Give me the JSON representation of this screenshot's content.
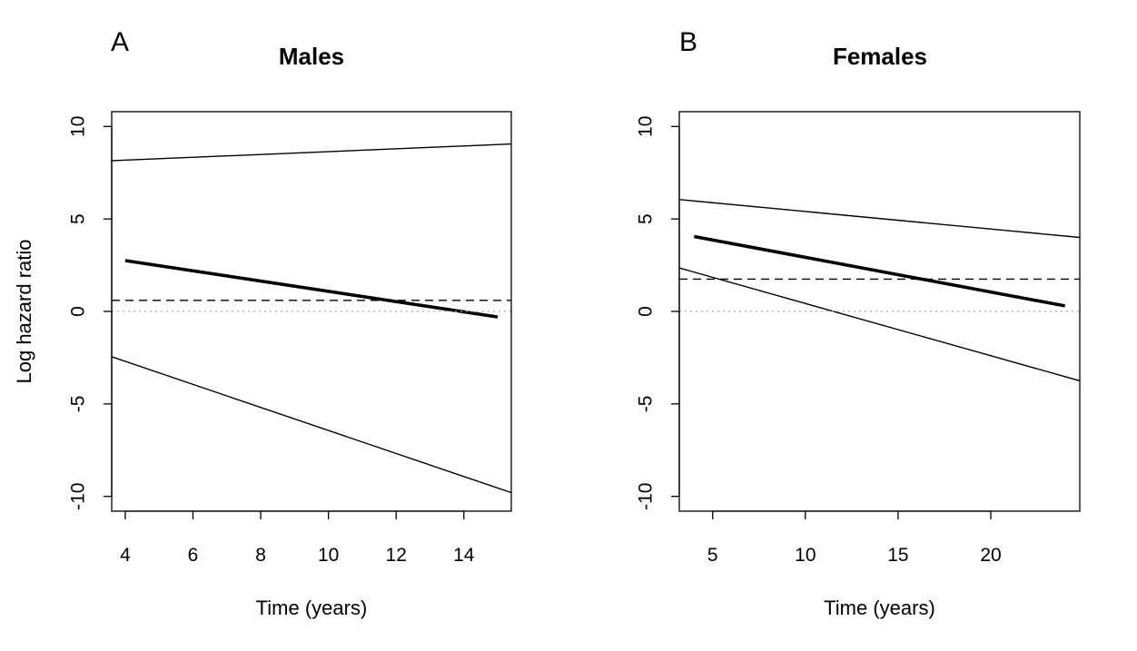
{
  "chart_data": [
    {
      "type": "line",
      "panel_label": "A",
      "title": "Males",
      "xlabel": "Time (years)",
      "ylabel": "Log hazard ratio",
      "xlim": [
        3.6,
        15.4
      ],
      "ylim": [
        -10.8,
        10.8
      ],
      "xticks": [
        4,
        6,
        8,
        10,
        12,
        14
      ],
      "yticks": [
        -10,
        -5,
        0,
        5,
        10
      ],
      "grid": false,
      "series": [
        {
          "role": "estimate",
          "style": "thick-solid",
          "x": [
            4,
            15
          ],
          "y": [
            2.75,
            -0.3
          ]
        },
        {
          "role": "upper-bound",
          "style": "thin-solid",
          "x": [
            3.6,
            15.4
          ],
          "y": [
            8.15,
            9.05
          ]
        },
        {
          "role": "lower-bound",
          "style": "thin-solid",
          "x": [
            3.6,
            15.4
          ],
          "y": [
            -2.45,
            -9.8
          ]
        },
        {
          "role": "reference-dashed",
          "style": "dashed",
          "x": [
            3.6,
            15.4
          ],
          "y": [
            0.6,
            0.6
          ]
        },
        {
          "role": "zero-line",
          "style": "dotted-gray",
          "x": [
            3.6,
            15.4
          ],
          "y": [
            0,
            0
          ]
        }
      ]
    },
    {
      "type": "line",
      "panel_label": "B",
      "title": "Females",
      "xlabel": "Time (years)",
      "ylabel": "",
      "xlim": [
        3.2,
        24.8
      ],
      "ylim": [
        -10.8,
        10.8
      ],
      "xticks": [
        5,
        10,
        15,
        20
      ],
      "yticks": [
        -10,
        -5,
        0,
        5,
        10
      ],
      "grid": false,
      "series": [
        {
          "role": "estimate",
          "style": "thick-solid",
          "x": [
            4,
            24
          ],
          "y": [
            4.05,
            0.3
          ]
        },
        {
          "role": "upper-bound",
          "style": "thin-solid",
          "x": [
            3.2,
            24.8
          ],
          "y": [
            6.05,
            4.0
          ]
        },
        {
          "role": "lower-bound",
          "style": "thin-solid",
          "x": [
            3.2,
            24.8
          ],
          "y": [
            2.35,
            -3.75
          ]
        },
        {
          "role": "reference-dashed",
          "style": "dashed",
          "x": [
            3.2,
            24.8
          ],
          "y": [
            1.75,
            1.75
          ]
        },
        {
          "role": "zero-line",
          "style": "dotted-gray",
          "x": [
            3.2,
            24.8
          ],
          "y": [
            0,
            0
          ]
        }
      ]
    }
  ]
}
